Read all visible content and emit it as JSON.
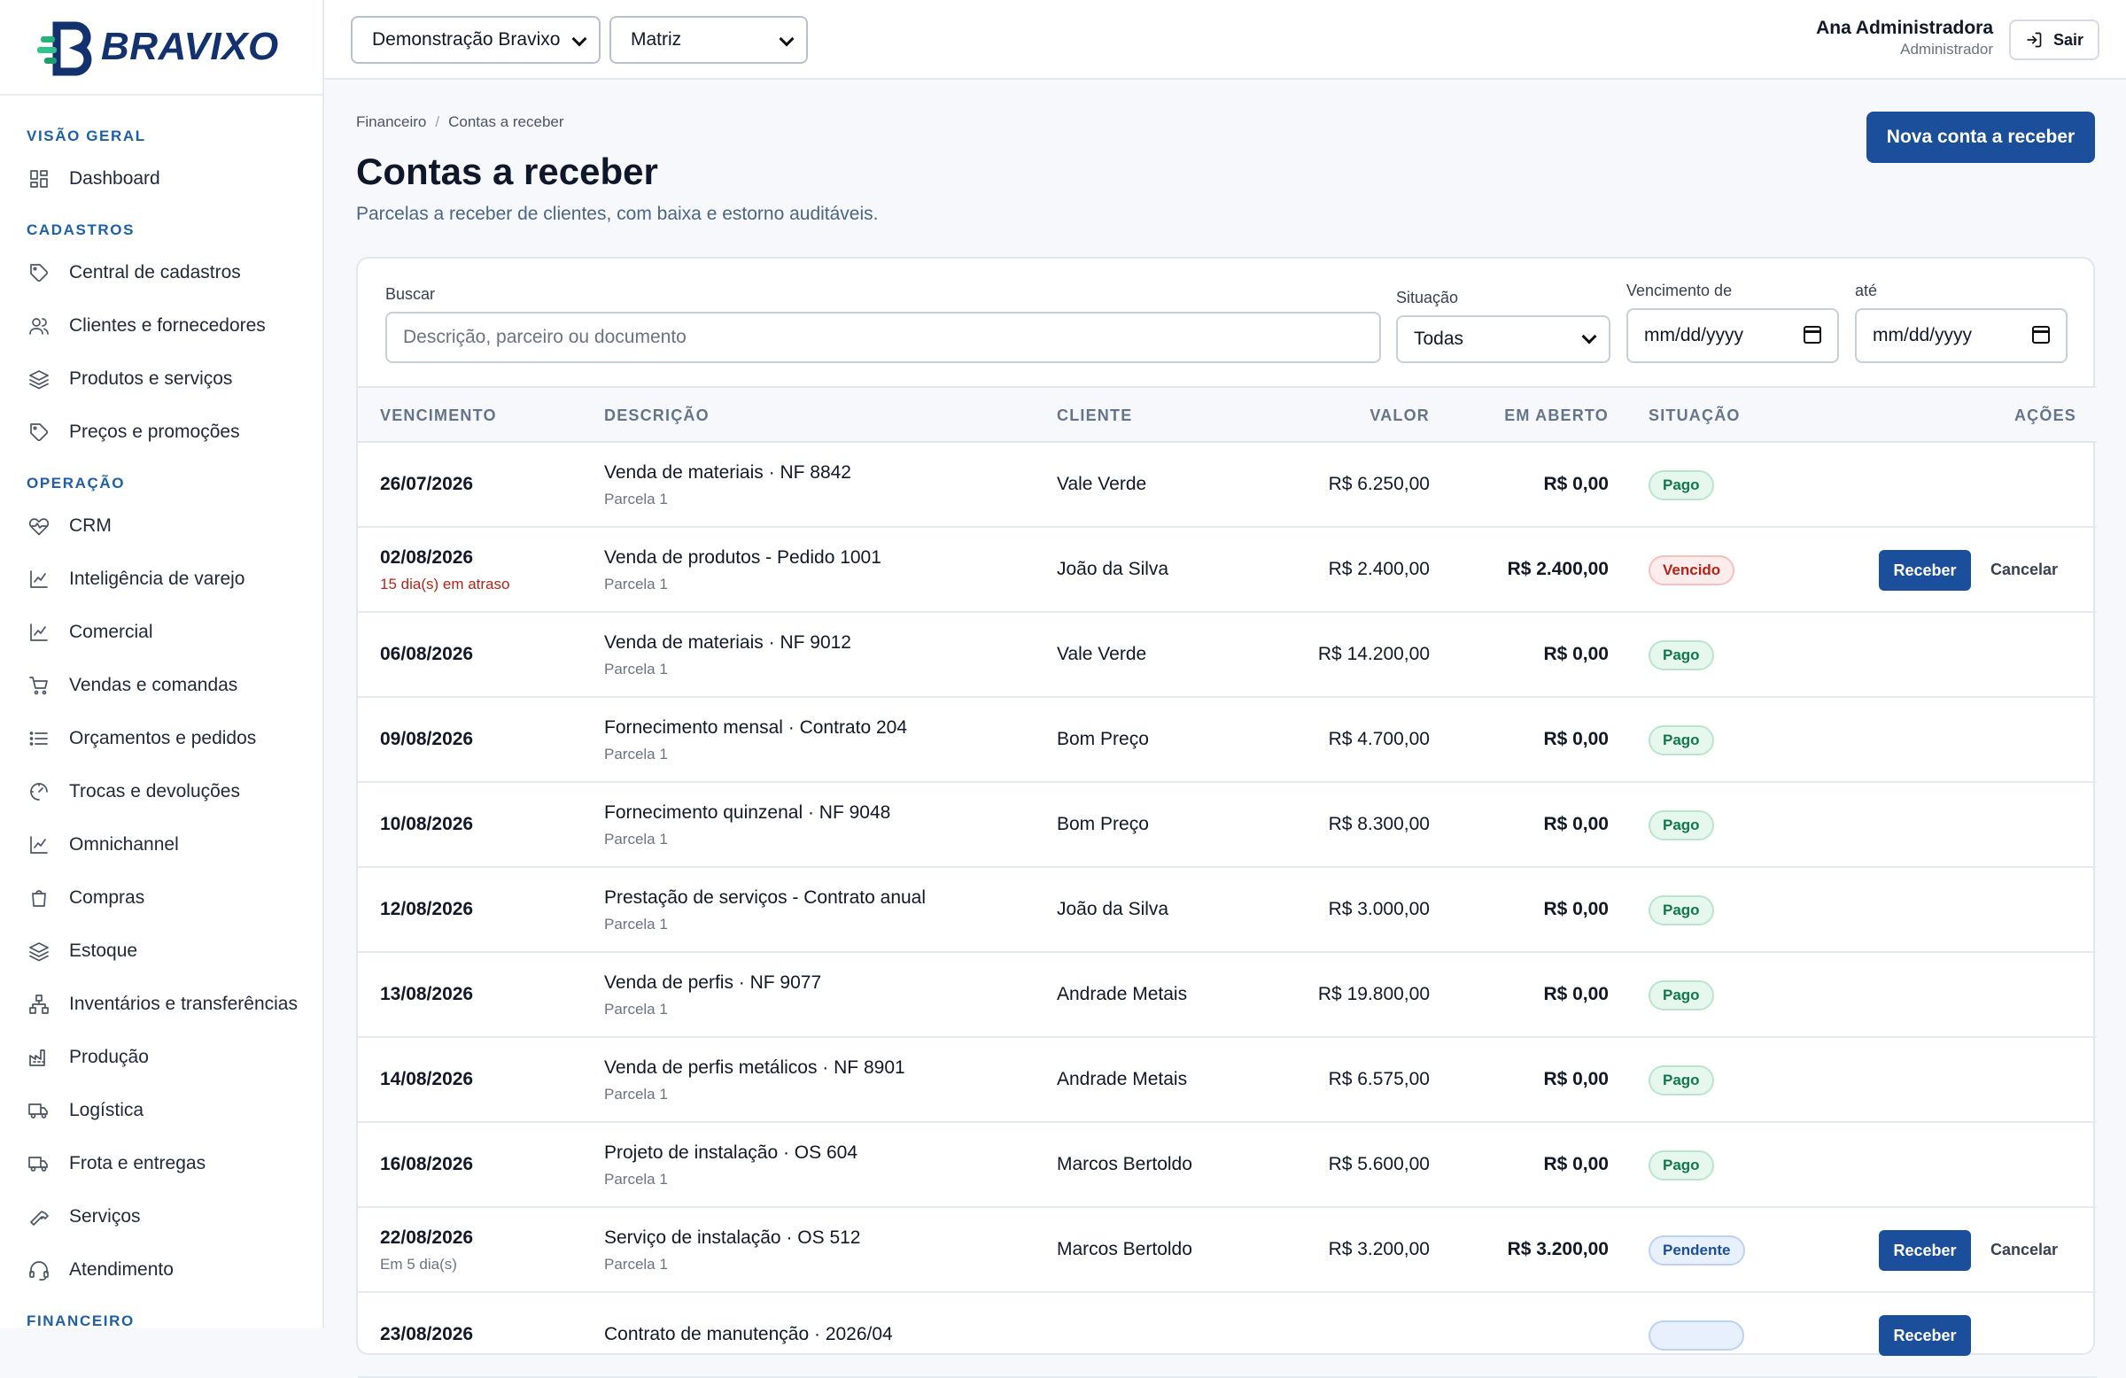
{
  "brand": {
    "name": "BRAVIXO"
  },
  "sidebar": {
    "sections": [
      {
        "title": "VISÃO GERAL",
        "items": [
          {
            "label": "Dashboard",
            "icon": "dashboard-icon"
          }
        ]
      },
      {
        "title": "CADASTROS",
        "items": [
          {
            "label": "Central de cadastros",
            "icon": "tag-icon"
          },
          {
            "label": "Clientes e fornecedores",
            "icon": "users-icon"
          },
          {
            "label": "Produtos e serviços",
            "icon": "layers-icon"
          },
          {
            "label": "Preços e promoções",
            "icon": "tag-icon"
          }
        ]
      },
      {
        "title": "OPERAÇÃO",
        "items": [
          {
            "label": "CRM",
            "icon": "heart-pulse-icon"
          },
          {
            "label": "Inteligência de varejo",
            "icon": "chart-line-icon"
          },
          {
            "label": "Comercial",
            "icon": "chart-line-icon"
          },
          {
            "label": "Vendas e comandas",
            "icon": "cart-icon"
          },
          {
            "label": "Orçamentos e pedidos",
            "icon": "list-icon"
          },
          {
            "label": "Trocas e devoluções",
            "icon": "gauge-icon"
          },
          {
            "label": "Omnichannel",
            "icon": "chart-line-icon"
          },
          {
            "label": "Compras",
            "icon": "shopping-bag-icon"
          },
          {
            "label": "Estoque",
            "icon": "layers-icon"
          },
          {
            "label": "Inventários e transferências",
            "icon": "network-icon"
          },
          {
            "label": "Produção",
            "icon": "factory-icon"
          },
          {
            "label": "Logística",
            "icon": "truck-icon"
          },
          {
            "label": "Frota e entregas",
            "icon": "truck-icon"
          },
          {
            "label": "Serviços",
            "icon": "hammer-icon"
          },
          {
            "label": "Atendimento",
            "icon": "headset-icon"
          }
        ]
      },
      {
        "title": "FINANCEIRO",
        "items": []
      }
    ]
  },
  "topbar": {
    "company_select": "Demonstração Bravixo",
    "branch_select": "Matriz",
    "user_name": "Ana Administradora",
    "user_role": "Administrador",
    "logout_label": "Sair"
  },
  "header": {
    "breadcrumb": [
      "Financeiro",
      "Contas a receber"
    ],
    "title": "Contas a receber",
    "subtitle": "Parcelas a receber de clientes, com baixa e estorno auditáveis.",
    "new_button": "Nova conta a receber"
  },
  "filters": {
    "search_label": "Buscar",
    "search_placeholder": "Descrição, parceiro ou documento",
    "status_label": "Situação",
    "status_value": "Todas",
    "due_from_label": "Vencimento de",
    "due_from_value": "mm/dd/yyyy",
    "due_to_label": "até",
    "due_to_value": "mm/dd/yyyy"
  },
  "table": {
    "columns": [
      "VENCIMENTO",
      "DESCRIÇÃO",
      "CLIENTE",
      "VALOR",
      "EM ABERTO",
      "SITUAÇÃO",
      "AÇÕES"
    ],
    "rows": [
      {
        "due": "26/07/2026",
        "due_note": "",
        "desc": "Venda de materiais · NF 8842",
        "parcel": "Parcela 1",
        "client": "Vale Verde",
        "value": "R$ 6.250,00",
        "open": "R$ 0,00",
        "status": "Pago",
        "status_type": "pago"
      },
      {
        "due": "02/08/2026",
        "due_note": "15 dia(s) em atraso",
        "due_note_type": "late",
        "desc": "Venda de produtos - Pedido 1001",
        "parcel": "Parcela 1",
        "client": "João da Silva",
        "value": "R$ 2.400,00",
        "open": "R$ 2.400,00",
        "status": "Vencido",
        "status_type": "vencido",
        "actions": [
          "Receber",
          "Cancelar"
        ]
      },
      {
        "due": "06/08/2026",
        "due_note": "",
        "desc": "Venda de materiais · NF 9012",
        "parcel": "Parcela 1",
        "client": "Vale Verde",
        "value": "R$ 14.200,00",
        "open": "R$ 0,00",
        "status": "Pago",
        "status_type": "pago"
      },
      {
        "due": "09/08/2026",
        "due_note": "",
        "desc": "Fornecimento mensal · Contrato 204",
        "parcel": "Parcela 1",
        "client": "Bom Preço",
        "value": "R$ 4.700,00",
        "open": "R$ 0,00",
        "status": "Pago",
        "status_type": "pago"
      },
      {
        "due": "10/08/2026",
        "due_note": "",
        "desc": "Fornecimento quinzenal · NF 9048",
        "parcel": "Parcela 1",
        "client": "Bom Preço",
        "value": "R$ 8.300,00",
        "open": "R$ 0,00",
        "status": "Pago",
        "status_type": "pago"
      },
      {
        "due": "12/08/2026",
        "due_note": "",
        "desc": "Prestação de serviços - Contrato anual",
        "parcel": "Parcela 1",
        "client": "João da Silva",
        "value": "R$ 3.000,00",
        "open": "R$ 0,00",
        "status": "Pago",
        "status_type": "pago"
      },
      {
        "due": "13/08/2026",
        "due_note": "",
        "desc": "Venda de perfis · NF 9077",
        "parcel": "Parcela 1",
        "client": "Andrade Metais",
        "value": "R$ 19.800,00",
        "open": "R$ 0,00",
        "status": "Pago",
        "status_type": "pago"
      },
      {
        "due": "14/08/2026",
        "due_note": "",
        "desc": "Venda de perfis metálicos · NF 8901",
        "parcel": "Parcela 1",
        "client": "Andrade Metais",
        "value": "R$ 6.575,00",
        "open": "R$ 0,00",
        "status": "Pago",
        "status_type": "pago"
      },
      {
        "due": "16/08/2026",
        "due_note": "",
        "desc": "Projeto de instalação · OS 604",
        "parcel": "Parcela 1",
        "client": "Marcos Bertoldo",
        "value": "R$ 5.600,00",
        "open": "R$ 0,00",
        "status": "Pago",
        "status_type": "pago"
      },
      {
        "due": "22/08/2026",
        "due_note": "Em 5 dia(s)",
        "due_note_type": "normal",
        "desc": "Serviço de instalação · OS 512",
        "parcel": "Parcela 1",
        "client": "Marcos Bertoldo",
        "value": "R$ 3.200,00",
        "open": "R$ 3.200,00",
        "status": "Pendente",
        "status_type": "pendente",
        "actions": [
          "Receber",
          "Cancelar"
        ]
      },
      {
        "due": "23/08/2026",
        "due_note": "",
        "desc": "Contrato de manutenção · 2026/04",
        "parcel": "",
        "client": "",
        "value": "",
        "open": "",
        "status": "",
        "status_type": "pendente",
        "actions": [
          "Receber"
        ]
      }
    ]
  },
  "colors": {
    "primary": "#1b4f9c",
    "accent": "#1d5fa8",
    "success": "#11784a",
    "danger": "#b42318"
  }
}
